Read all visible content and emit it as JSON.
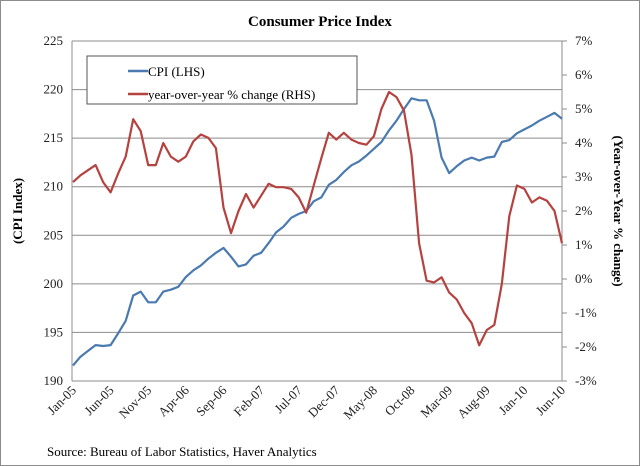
{
  "chart_data": {
    "type": "line",
    "title": "Consumer Price Index",
    "xlabel": "",
    "ylabel_left": "(CPI Index)",
    "ylabel_right": "(Year-over-Year % change)",
    "source": "Source:  Bureau of Labor Statistics, Haver Analytics",
    "grid": true,
    "legend_position": "top-left",
    "y_left": {
      "min": 190,
      "max": 225,
      "step": 5,
      "ticks": [
        "190",
        "195",
        "200",
        "205",
        "210",
        "215",
        "220",
        "225"
      ]
    },
    "y_right": {
      "min": -3,
      "max": 7,
      "step": 1,
      "ticks": [
        "-3%",
        "-2%",
        "-1%",
        "0%",
        "1%",
        "2%",
        "3%",
        "4%",
        "5%",
        "6%",
        "7%"
      ]
    },
    "x_tick_labels": [
      "Jan-05",
      "Jun-05",
      "Nov-05",
      "Apr-06",
      "Sep-06",
      "Feb-07",
      "Jul-07",
      "Dec-07",
      "May-08",
      "Oct-08",
      "Mar-09",
      "Aug-09",
      "Jan-10",
      "Jun-10"
    ],
    "x_tick_every_months": 5,
    "x_start": "Jan-05",
    "x_end": "Jun-10",
    "series": [
      {
        "name": "CPI (LHS)",
        "axis": "left",
        "color": "#4a7ab0",
        "values": [
          191.6,
          192.5,
          193.1,
          193.7,
          193.6,
          193.7,
          194.9,
          196.2,
          198.8,
          199.2,
          198.1,
          198.1,
          199.2,
          199.4,
          199.7,
          200.7,
          201.4,
          201.9,
          202.6,
          203.2,
          203.7,
          202.8,
          201.8,
          202.0,
          202.9,
          203.2,
          204.2,
          205.3,
          205.9,
          206.8,
          207.2,
          207.5,
          208.5,
          208.9,
          210.2,
          210.7,
          211.5,
          212.2,
          212.6,
          213.2,
          213.9,
          214.6,
          215.8,
          216.8,
          218.0,
          219.1,
          218.9,
          218.9,
          216.8,
          213.0,
          211.4,
          212.1,
          212.7,
          213.0,
          212.7,
          213.0,
          213.1,
          214.6,
          214.8,
          215.5,
          215.9,
          216.3,
          216.8,
          217.2,
          217.6,
          217.0
        ]
      },
      {
        "name": "year-over-year % change (RHS)",
        "axis": "right",
        "color": "#b5423f",
        "values": [
          2.85,
          3.05,
          3.2,
          3.35,
          2.85,
          2.55,
          3.1,
          3.6,
          4.7,
          4.35,
          3.35,
          3.35,
          4.0,
          3.6,
          3.45,
          3.6,
          4.05,
          4.25,
          4.15,
          3.85,
          2.1,
          1.35,
          2.0,
          2.5,
          2.1,
          2.45,
          2.8,
          2.7,
          2.7,
          2.65,
          2.4,
          1.95,
          2.75,
          3.55,
          4.3,
          4.1,
          4.3,
          4.1,
          4.0,
          3.95,
          4.2,
          5.0,
          5.5,
          5.35,
          4.95,
          3.65,
          1.05,
          -0.05,
          -0.1,
          0.05,
          -0.4,
          -0.6,
          -1.0,
          -1.3,
          -1.95,
          -1.5,
          -1.35,
          -0.15,
          1.85,
          2.75,
          2.65,
          2.25,
          2.4,
          2.3,
          2.0,
          1.05
        ]
      }
    ],
    "legend": [
      "CPI (LHS)",
      "year-over-year % change (RHS)"
    ]
  },
  "colors": {
    "cpi_line": "#4a7ab0",
    "yoy_line": "#b5423f",
    "grid": "#8c8c8c",
    "axis": "#8c8c8c"
  }
}
